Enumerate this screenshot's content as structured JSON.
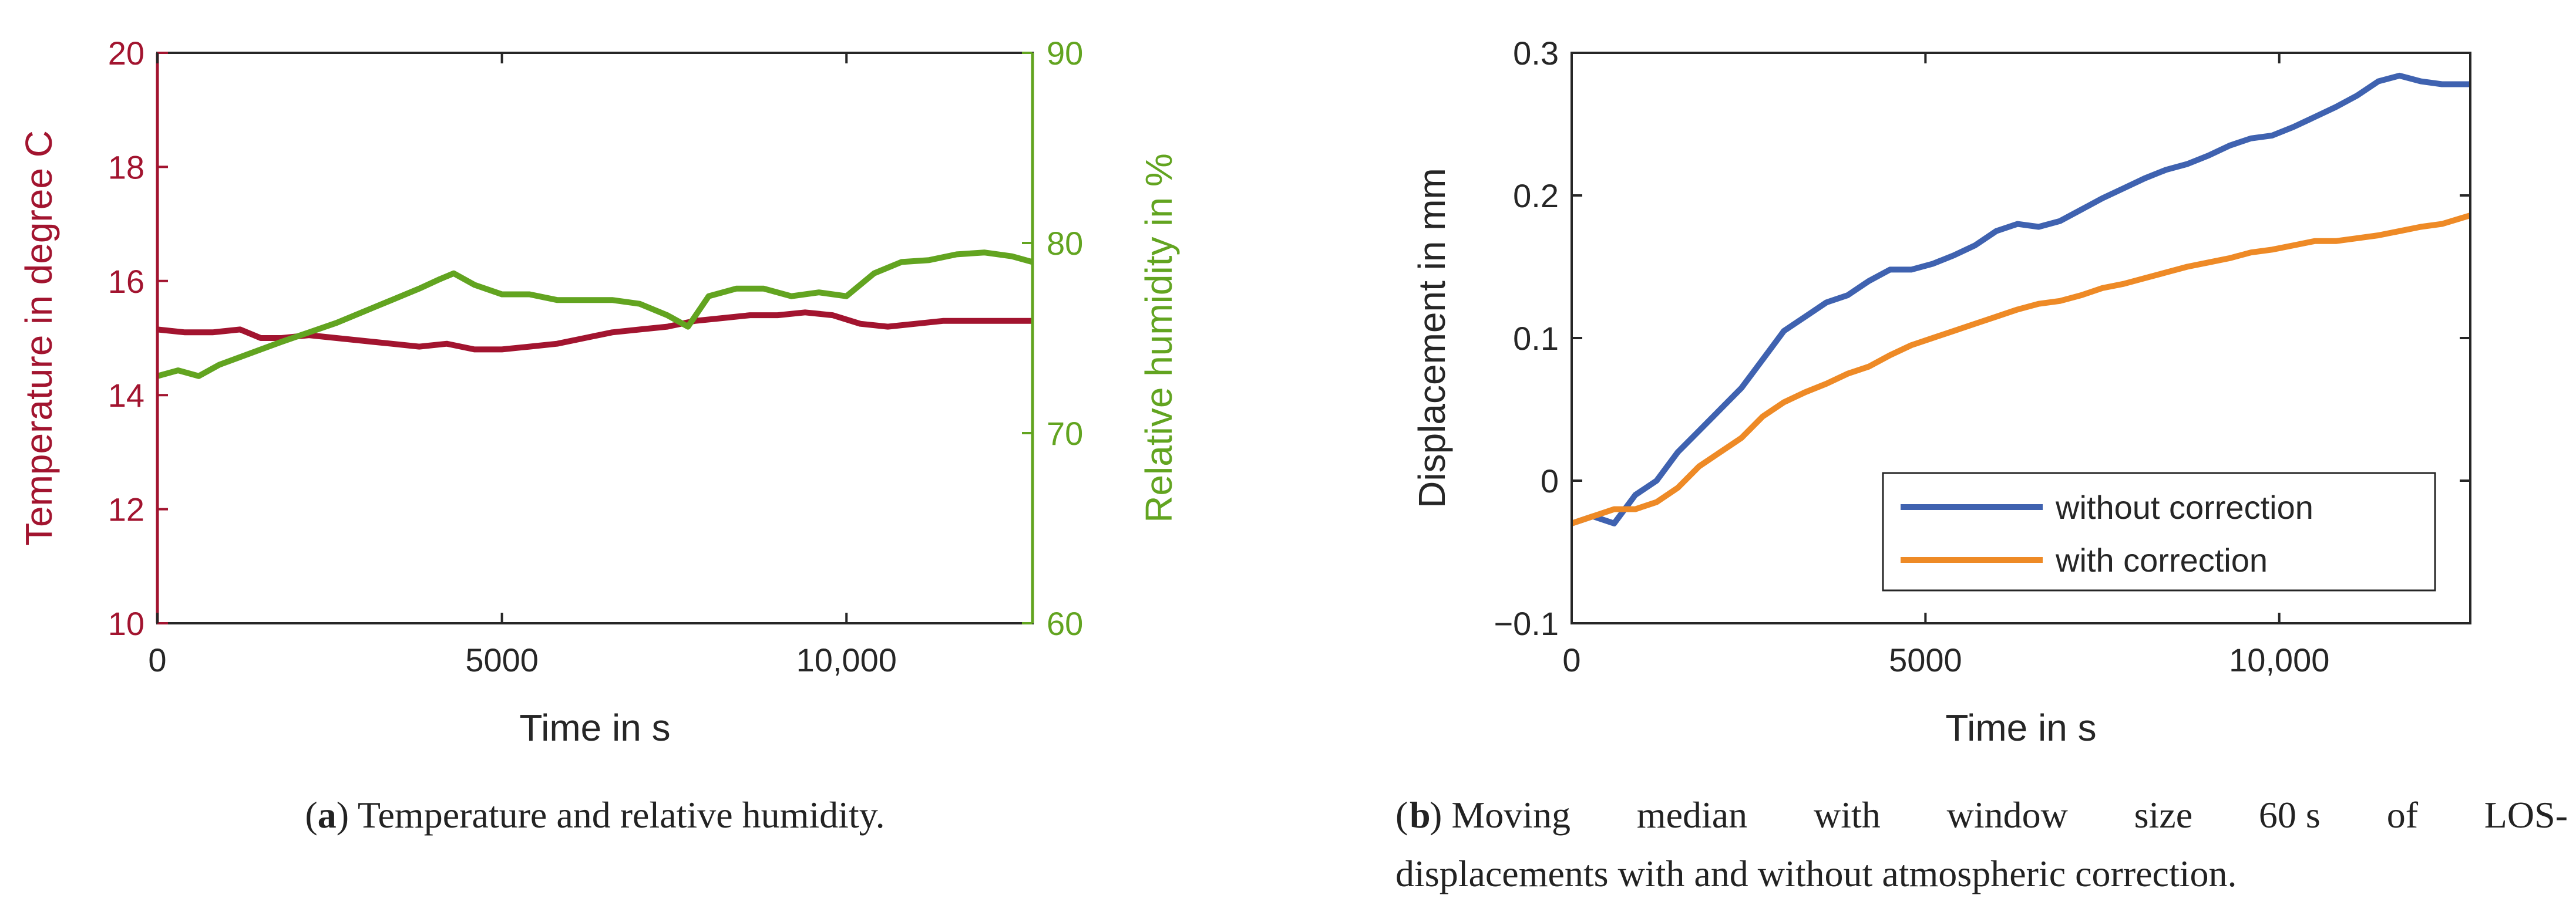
{
  "charts": {
    "a": {
      "caption_prefix": "(",
      "caption_letter": "a",
      "caption_text": ") Temperature and relative humidity."
    },
    "b": {
      "caption_line1_letter": "b",
      "caption_line1_words": [
        ") Moving",
        "median",
        "with",
        "window",
        "size",
        "60 s",
        "of",
        "LOS-"
      ],
      "caption_line2": "displacements with and without atmospheric correction."
    }
  },
  "chart_data": [
    {
      "type": "line",
      "xlabel": "Time in s",
      "ylabel": "Temperature in degree C",
      "y2label": "Relative humidity in %",
      "xlim": [
        0,
        12700
      ],
      "ylim": [
        10,
        20
      ],
      "y2lim": [
        60,
        90
      ],
      "xticks": [
        0,
        5000,
        10000
      ],
      "xtick_labels": [
        "0",
        "5000",
        "10,000"
      ],
      "yticks": [
        10,
        12,
        14,
        16,
        18,
        20
      ],
      "ytick_labels": [
        "10",
        "12",
        "14",
        "16",
        "18",
        "20"
      ],
      "y2ticks": [
        60,
        70,
        80,
        90
      ],
      "y2tick_labels": [
        "60",
        "70",
        "80",
        "90"
      ],
      "grid": false,
      "colors": {
        "temperature": "#a2142f",
        "humidity": "#62a420",
        "axis": "#262626"
      },
      "series": [
        {
          "key": "temperature",
          "axis": "left",
          "x": [
            0,
            400,
            800,
            1200,
            1500,
            1800,
            2200,
            2600,
            3000,
            3400,
            3800,
            4200,
            4600,
            5000,
            5400,
            5800,
            6200,
            6600,
            7000,
            7400,
            7800,
            8200,
            8600,
            9000,
            9400,
            9800,
            10200,
            10600,
            11000,
            11400,
            11800,
            12200,
            12700
          ],
          "y": [
            15.15,
            15.1,
            15.1,
            15.15,
            15.0,
            15.0,
            15.05,
            15.0,
            14.95,
            14.9,
            14.85,
            14.9,
            14.8,
            14.8,
            14.85,
            14.9,
            15.0,
            15.1,
            15.15,
            15.2,
            15.3,
            15.35,
            15.4,
            15.4,
            15.45,
            15.4,
            15.25,
            15.2,
            15.25,
            15.3,
            15.3,
            15.3,
            15.3
          ]
        },
        {
          "key": "humidity",
          "axis": "right",
          "x": [
            0,
            300,
            600,
            900,
            1200,
            1500,
            1800,
            2200,
            2600,
            3000,
            3400,
            3800,
            4100,
            4300,
            4600,
            5000,
            5400,
            5800,
            6200,
            6600,
            7000,
            7400,
            7700,
            8000,
            8400,
            8800,
            9200,
            9600,
            10000,
            10400,
            10800,
            11200,
            11600,
            12000,
            12400,
            12700
          ],
          "y": [
            73.0,
            73.3,
            73.0,
            73.6,
            74.0,
            74.4,
            74.8,
            75.3,
            75.8,
            76.4,
            77.0,
            77.6,
            78.1,
            78.4,
            77.8,
            77.3,
            77.3,
            77.0,
            77.0,
            77.0,
            76.8,
            76.2,
            75.6,
            77.2,
            77.6,
            77.6,
            77.2,
            77.4,
            77.2,
            78.4,
            79.0,
            79.1,
            79.4,
            79.5,
            79.3,
            79.0
          ]
        }
      ]
    },
    {
      "type": "line",
      "xlabel": "Time in s",
      "ylabel": "Displacement in mm",
      "xlim": [
        0,
        12700
      ],
      "ylim": [
        -0.1,
        0.3
      ],
      "xticks": [
        0,
        5000,
        10000
      ],
      "xtick_labels": [
        "0",
        "5000",
        "10,000"
      ],
      "yticks": [
        -0.1,
        0,
        0.1,
        0.2,
        0.3
      ],
      "ytick_labels": [
        "−0.1",
        "0",
        "0.1",
        "0.2",
        "0.3"
      ],
      "grid": false,
      "legend": "bottom-right",
      "colors": {
        "without": "#3f62b0",
        "with": "#ee8a26",
        "axis": "#262626"
      },
      "series": [
        {
          "key": "without",
          "name": "without correction",
          "x": [
            0,
            300,
            600,
            900,
            1200,
            1500,
            1800,
            2100,
            2400,
            2700,
            3000,
            3300,
            3600,
            3900,
            4200,
            4500,
            4800,
            5100,
            5400,
            5700,
            6000,
            6300,
            6600,
            6900,
            7200,
            7500,
            7800,
            8100,
            8400,
            8700,
            9000,
            9300,
            9600,
            9900,
            10200,
            10500,
            10800,
            11100,
            11400,
            11700,
            12000,
            12300,
            12700
          ],
          "y": [
            -0.03,
            -0.025,
            -0.03,
            -0.01,
            0.0,
            0.02,
            0.035,
            0.05,
            0.065,
            0.085,
            0.105,
            0.115,
            0.125,
            0.13,
            0.14,
            0.148,
            0.148,
            0.152,
            0.158,
            0.165,
            0.175,
            0.18,
            0.178,
            0.182,
            0.19,
            0.198,
            0.205,
            0.212,
            0.218,
            0.222,
            0.228,
            0.235,
            0.24,
            0.242,
            0.248,
            0.255,
            0.262,
            0.27,
            0.28,
            0.284,
            0.28,
            0.278,
            0.278
          ]
        },
        {
          "key": "with",
          "name": "with correction",
          "x": [
            0,
            300,
            600,
            900,
            1200,
            1500,
            1800,
            2100,
            2400,
            2700,
            3000,
            3300,
            3600,
            3900,
            4200,
            4500,
            4800,
            5100,
            5400,
            5700,
            6000,
            6300,
            6600,
            6900,
            7200,
            7500,
            7800,
            8100,
            8400,
            8700,
            9000,
            9300,
            9600,
            9900,
            10200,
            10500,
            10800,
            11100,
            11400,
            11700,
            12000,
            12300,
            12700
          ],
          "y": [
            -0.03,
            -0.025,
            -0.02,
            -0.02,
            -0.015,
            -0.005,
            0.01,
            0.02,
            0.03,
            0.045,
            0.055,
            0.062,
            0.068,
            0.075,
            0.08,
            0.088,
            0.095,
            0.1,
            0.105,
            0.11,
            0.115,
            0.12,
            0.124,
            0.126,
            0.13,
            0.135,
            0.138,
            0.142,
            0.146,
            0.15,
            0.153,
            0.156,
            0.16,
            0.162,
            0.165,
            0.168,
            0.168,
            0.17,
            0.172,
            0.175,
            0.178,
            0.18,
            0.186
          ]
        }
      ]
    }
  ]
}
